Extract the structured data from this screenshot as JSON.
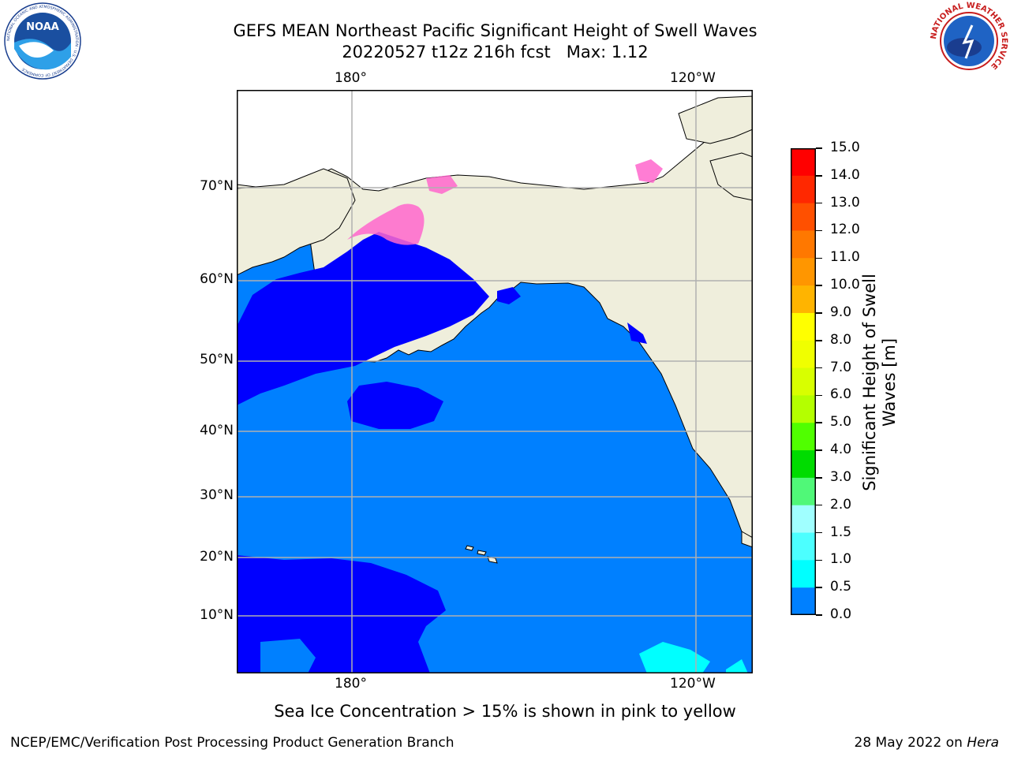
{
  "title": {
    "line1": "GEFS MEAN Northeast Pacific Significant Height of Swell Waves",
    "line2": "20220527 t12z 216h fcst   Max: 1.12"
  },
  "logos": {
    "noaa_text": "NOAA",
    "noaa_ring_text": "NATIONAL OCEANIC AND ATMOSPHERIC ADMINISTRATION · U.S. DEPARTMENT OF COMMERCE",
    "nws_ring_text": "NATIONAL WEATHER SERVICE"
  },
  "map": {
    "lon_top": [
      "180°",
      "120°W"
    ],
    "lon_bottom": [
      "180°",
      "120°W"
    ],
    "lat_labels": [
      "70°N",
      "60°N",
      "50°N",
      "40°N",
      "30°N",
      "20°N",
      "10°N"
    ],
    "colors": {
      "land": "#efeedc",
      "ocean_low": "#0000ff",
      "ocean_mid": "#0080ff",
      "ocean_cyan": "#00ffff",
      "gridline": "#b0b0b0",
      "ice_pink": "#ff66cc",
      "ice_yellow": "#ffcc00"
    }
  },
  "colorbar": {
    "ticks": [
      "15.0",
      "14.0",
      "13.0",
      "12.0",
      "11.0",
      "10.0",
      "9.0",
      "8.0",
      "7.0",
      "6.0",
      "5.0",
      "4.0",
      "3.0",
      "2.0",
      "1.5",
      "1.0",
      "0.5",
      "0.0"
    ],
    "colors": [
      "#ff0000",
      "#ff2800",
      "#ff5000",
      "#ff7800",
      "#ff9600",
      "#ffb400",
      "#ffff00",
      "#f0ff00",
      "#d8ff00",
      "#b4ff00",
      "#50ff00",
      "#00dc00",
      "#50f878",
      "#a0ffff",
      "#4cffff",
      "#00ffff",
      "#0080ff",
      "#0000ff"
    ],
    "label_line1": "Significant Height of Swell",
    "label_line2": "Waves [m]"
  },
  "note": "Sea Ice Concentration > 15% is shown in pink to yellow",
  "footer": {
    "left": "NCEP/EMC/Verification Post Processing Product Generation Branch",
    "right_prefix": "28 May 2022 on ",
    "right_host": "Hera"
  }
}
